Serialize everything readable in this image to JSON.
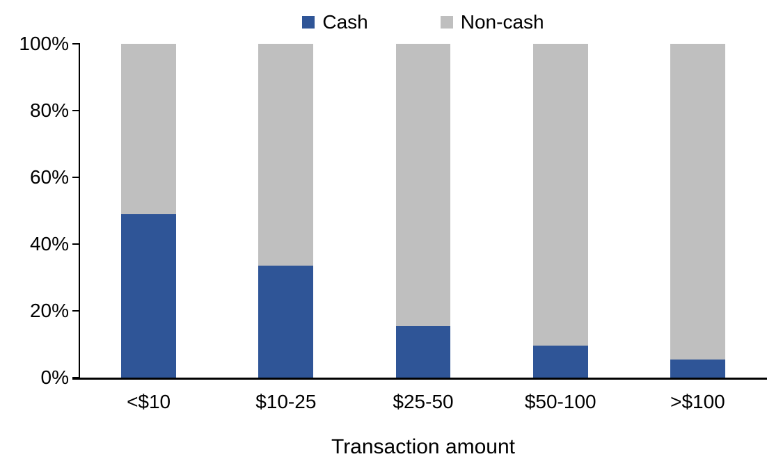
{
  "chart_data": {
    "type": "bar",
    "variant": "stacked-100-percent",
    "title": "",
    "xlabel": "Transaction amount",
    "ylabel": "",
    "categories": [
      "<$10",
      "$10-25",
      "$25-50",
      "$50-100",
      ">$100"
    ],
    "series": [
      {
        "name": "Cash",
        "color": "#2F5597",
        "values": [
          49,
          33.5,
          15.5,
          9.5,
          5.5
        ]
      },
      {
        "name": "Non-cash",
        "color": "#BFBFBF",
        "values": [
          51,
          66.5,
          84.5,
          90.5,
          94.5
        ]
      }
    ],
    "ylim": [
      0,
      100
    ],
    "yticks": [
      {
        "label": "0%",
        "value": 0
      },
      {
        "label": "20%",
        "value": 20
      },
      {
        "label": "40%",
        "value": 40
      },
      {
        "label": "60%",
        "value": 60
      },
      {
        "label": "80%",
        "value": 80
      },
      {
        "label": "100%",
        "value": 100
      }
    ],
    "grid": false,
    "legend_position": "top",
    "axis_color": "#000000",
    "text_color": "#000000"
  }
}
